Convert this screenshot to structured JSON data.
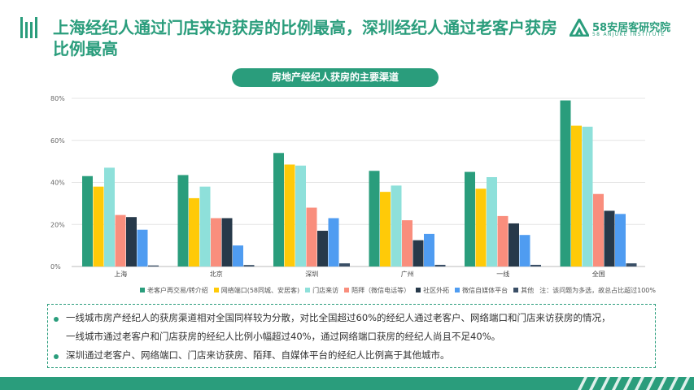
{
  "header": {
    "title": "上海经纪人通过门店来访获房的比例最高，深圳经纪人通过老客户获房比例最高",
    "brand_name": "58安居客研究院",
    "brand_sub": "58 ANJUKE INSTITUTE"
  },
  "chart_title": "房地产经纪人获房的主要渠道",
  "chart_data": {
    "type": "bar",
    "title": "房地产经纪人获房的主要渠道",
    "categories": [
      "上海",
      "北京",
      "深圳",
      "广州",
      "一线",
      "全国"
    ],
    "ylim": [
      0,
      80
    ],
    "yticks": [
      "0%",
      "20%",
      "40%",
      "60%",
      "80%"
    ],
    "grid": true,
    "legend_position": "bottom",
    "series": [
      {
        "name": "老客户再交易/转介绍",
        "color": "#2a9d7c",
        "values": [
          43,
          43.5,
          54,
          45.5,
          45,
          79
        ]
      },
      {
        "name": "网络端口(58同城、安居客)",
        "color": "#ffca08",
        "values": [
          38,
          32.5,
          48.5,
          35.5,
          37,
          67
        ]
      },
      {
        "name": "门店来访",
        "color": "#8ee0da",
        "values": [
          47,
          38,
          48,
          38.5,
          42.5,
          66.5
        ]
      },
      {
        "name": "陌拜（微信电话等）",
        "color": "#f98e7d",
        "values": [
          24.5,
          23,
          28,
          22,
          24,
          34.5
        ]
      },
      {
        "name": "社区外拓",
        "color": "#27394a",
        "values": [
          23.5,
          23,
          17,
          12.5,
          20.5,
          26.5
        ]
      },
      {
        "name": "微信自媒体平台",
        "color": "#4f9cf1",
        "values": [
          17.5,
          10,
          23,
          15.5,
          15,
          25
        ]
      },
      {
        "name": "其他",
        "color": "#3a4f66",
        "values": [
          0.5,
          0.7,
          1.5,
          0.8,
          0.8,
          1.5
        ]
      }
    ],
    "note": "注：该问题为多选，故总占比超过100%"
  },
  "bullets": [
    "一线城市房产经纪人的获房渠道相对全国同样较为分散，对比全国超过60%的经纪人通过老客户、网络端口和门店来访获房的情况，",
    "一线城市通过老客户和门店获房的经纪人比例小幅超过40%，通过网络端口获房的经纪人尚且不足40%。",
    "深圳通过老客户、网络端口、门店来访获房、陌拜、自媒体平台的经纪人比例高于其他城市。"
  ],
  "colors": {
    "accent": "#2a9d7c"
  }
}
